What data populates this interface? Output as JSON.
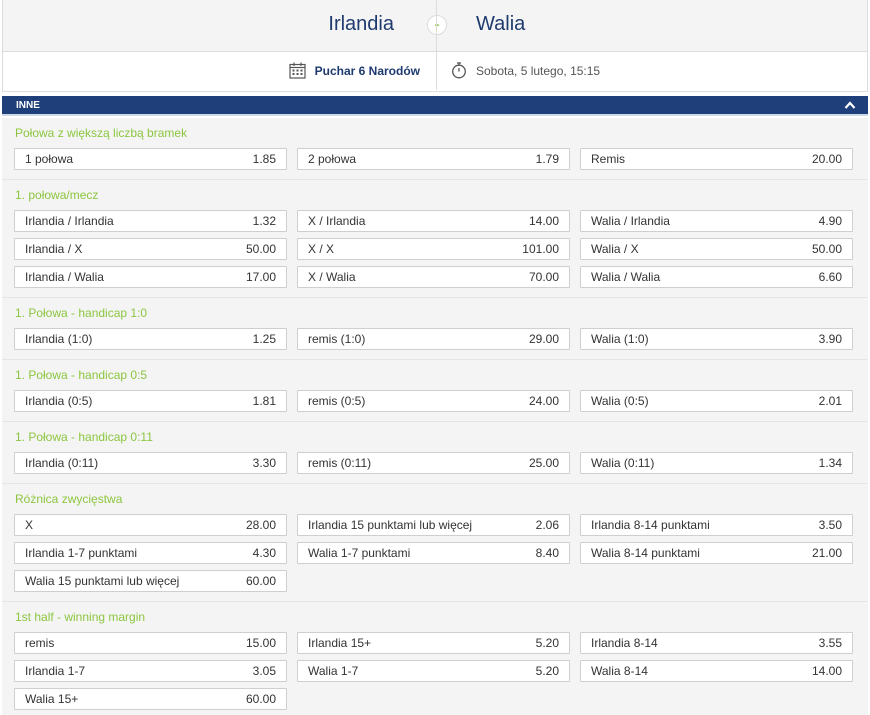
{
  "match": {
    "home": "Irlandia",
    "away": "Walia",
    "vs_symbol": "-",
    "league": "Puchar 6 Narodów",
    "datetime": "Sobota, 5 lutego, 15:15"
  },
  "icons": {
    "calendar": "calendar-icon",
    "clock": "stopwatch-icon",
    "collapse": "chevron-up-icon"
  },
  "colors": {
    "primary": "#1e3f7a",
    "accent": "#8cc63f",
    "team_text": "#1e3a6e"
  },
  "section": {
    "title": "INNE"
  },
  "markets": [
    {
      "title": "Połowa z większą liczbą bramek",
      "odds": [
        {
          "label": "1 połowa",
          "value": "1.85"
        },
        {
          "label": "2 połowa",
          "value": "1.79"
        },
        {
          "label": "Remis",
          "value": "20.00"
        }
      ]
    },
    {
      "title": "1. połowa/mecz",
      "odds": [
        {
          "label": "Irlandia / Irlandia",
          "value": "1.32"
        },
        {
          "label": "X / Irlandia",
          "value": "14.00"
        },
        {
          "label": "Walia / Irlandia",
          "value": "4.90"
        },
        {
          "label": "Irlandia / X",
          "value": "50.00"
        },
        {
          "label": "X / X",
          "value": "101.00"
        },
        {
          "label": "Walia / X",
          "value": "50.00"
        },
        {
          "label": "Irlandia / Walia",
          "value": "17.00"
        },
        {
          "label": "X / Walia",
          "value": "70.00"
        },
        {
          "label": "Walia / Walia",
          "value": "6.60"
        }
      ]
    },
    {
      "title": "1. Połowa - handicap 1:0",
      "odds": [
        {
          "label": "Irlandia (1:0)",
          "value": "1.25"
        },
        {
          "label": "remis (1:0)",
          "value": "29.00"
        },
        {
          "label": "Walia (1:0)",
          "value": "3.90"
        }
      ]
    },
    {
      "title": "1. Połowa - handicap 0:5",
      "odds": [
        {
          "label": "Irlandia (0:5)",
          "value": "1.81"
        },
        {
          "label": "remis (0:5)",
          "value": "24.00"
        },
        {
          "label": "Walia (0:5)",
          "value": "2.01"
        }
      ]
    },
    {
      "title": "1. Połowa - handicap 0:11",
      "odds": [
        {
          "label": "Irlandia (0:11)",
          "value": "3.30"
        },
        {
          "label": "remis (0:11)",
          "value": "25.00"
        },
        {
          "label": "Walia (0:11)",
          "value": "1.34"
        }
      ]
    },
    {
      "title": "Różnica zwycięstwa",
      "odds": [
        {
          "label": "X",
          "value": "28.00"
        },
        {
          "label": "Irlandia 15 punktami lub więcej",
          "value": "2.06"
        },
        {
          "label": "Irlandia 8-14 punktami",
          "value": "3.50"
        },
        {
          "label": "Irlandia 1-7 punktami",
          "value": "4.30"
        },
        {
          "label": "Walia 1-7 punktami",
          "value": "8.40"
        },
        {
          "label": "Walia 8-14 punktami",
          "value": "21.00"
        },
        {
          "label": "Walia 15 punktami lub więcej",
          "value": "60.00"
        }
      ]
    },
    {
      "title": "1st half - winning margin",
      "odds": [
        {
          "label": "remis",
          "value": "15.00"
        },
        {
          "label": "Irlandia 15+",
          "value": "5.20"
        },
        {
          "label": "Irlandia 8-14",
          "value": "3.55"
        },
        {
          "label": "Irlandia 1-7",
          "value": "3.05"
        },
        {
          "label": "Walia 1-7",
          "value": "5.20"
        },
        {
          "label": "Walia 8-14",
          "value": "14.00"
        },
        {
          "label": "Walia 15+",
          "value": "60.00"
        }
      ]
    }
  ]
}
